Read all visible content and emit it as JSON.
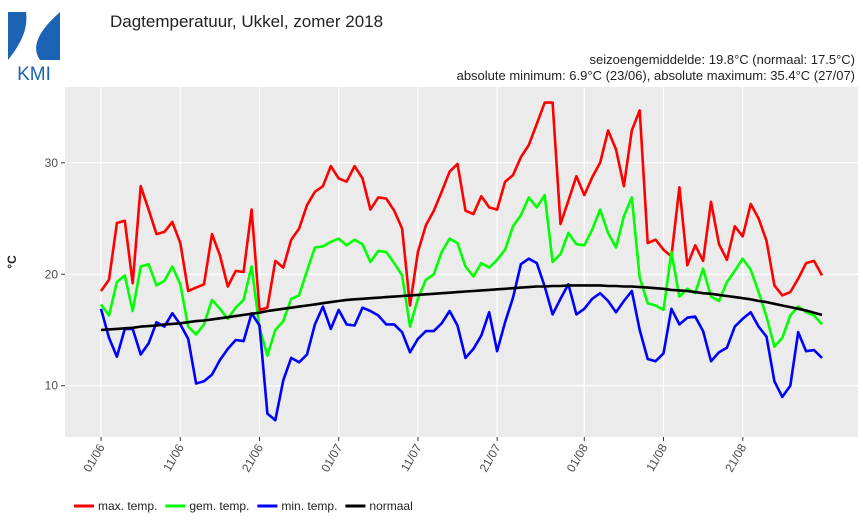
{
  "chart_data": {
    "type": "line",
    "logo": "KMI",
    "title": "Dagtemperatuur, Ukkel, zomer 2018",
    "subtitle": [
      "seizoengemiddelde: 19.8°C (normaal: 17.5°C)",
      "absolute minimum: 6.9°C (23/06), absolute maximum: 35.4°C (27/07)"
    ],
    "y_label": "°C",
    "ylim": [
      5.4,
      36.8
    ],
    "yticks": [
      10,
      20,
      30
    ],
    "grid": true,
    "legend": "bottom-left",
    "categories": [
      "01/06",
      null,
      null,
      null,
      null,
      null,
      null,
      null,
      null,
      null,
      "11/06",
      null,
      null,
      null,
      null,
      null,
      null,
      null,
      null,
      null,
      "21/06",
      null,
      null,
      null,
      null,
      null,
      null,
      null,
      null,
      null,
      "01/07",
      null,
      null,
      null,
      null,
      null,
      null,
      null,
      null,
      null,
      "11/07",
      null,
      null,
      null,
      null,
      null,
      null,
      null,
      null,
      null,
      "21/07",
      null,
      null,
      null,
      null,
      null,
      null,
      null,
      null,
      null,
      null,
      "01/08",
      null,
      null,
      null,
      null,
      null,
      null,
      null,
      null,
      null,
      "11/08",
      null,
      null,
      null,
      null,
      null,
      null,
      null,
      null,
      null,
      "21/08",
      null,
      null,
      null,
      null,
      null,
      null,
      null,
      null,
      null,
      null
    ],
    "series": [
      {
        "name": "max. temp.",
        "color": "#ff0000",
        "values": [
          18.5,
          19.5,
          24.6,
          24.8,
          19.2,
          27.9,
          25.8,
          23.6,
          23.8,
          24.7,
          22.8,
          18.5,
          18.8,
          19.1,
          23.6,
          21.7,
          18.9,
          20.3,
          20.2,
          25.8,
          16.8,
          17.0,
          21.2,
          20.6,
          23.1,
          24.1,
          26.2,
          27.4,
          27.9,
          29.7,
          28.6,
          28.3,
          29.7,
          28.6,
          25.8,
          26.9,
          26.8,
          25.7,
          24.1,
          17.2,
          22.0,
          24.4,
          25.7,
          27.4,
          29.2,
          29.9,
          25.7,
          25.4,
          27.0,
          26.0,
          25.8,
          28.3,
          28.9,
          30.5,
          31.6,
          33.5,
          35.4,
          35.4,
          24.5,
          26.6,
          28.8,
          27.1,
          28.7,
          30.0,
          32.9,
          31.2,
          27.9,
          32.9,
          34.7,
          22.8,
          23.1,
          22.2,
          21.6,
          27.8,
          20.8,
          22.6,
          21.2,
          26.5,
          22.7,
          21.3,
          24.3,
          23.4,
          26.3,
          25.0,
          23.0,
          19.0,
          18.1,
          18.4,
          19.6,
          21.0,
          21.2,
          19.9
        ]
      },
      {
        "name": "gem. temp.",
        "color": "#00ff00",
        "values": [
          17.3,
          16.3,
          19.3,
          19.9,
          16.7,
          20.7,
          20.9,
          19.0,
          19.4,
          20.7,
          19.1,
          15.3,
          14.6,
          15.5,
          17.7,
          16.9,
          16.0,
          17.0,
          17.7,
          20.7,
          15.2,
          12.7,
          15.0,
          15.8,
          17.8,
          18.1,
          20.3,
          22.4,
          22.5,
          22.9,
          23.2,
          22.6,
          23.1,
          22.7,
          21.1,
          22.1,
          22.0,
          21.0,
          19.9,
          15.3,
          17.8,
          19.5,
          20.0,
          22.0,
          23.2,
          22.8,
          20.7,
          19.8,
          21.0,
          20.6,
          21.3,
          22.2,
          24.3,
          25.3,
          26.9,
          26.0,
          27.1,
          21.1,
          21.8,
          23.7,
          22.7,
          22.6,
          24.0,
          25.8,
          23.7,
          22.4,
          25.2,
          26.9,
          19.7,
          17.4,
          17.2,
          16.8,
          22.0,
          18.0,
          18.7,
          18.3,
          20.5,
          18.0,
          17.6,
          19.3,
          20.3,
          21.4,
          20.4,
          18.4,
          16.2,
          13.5,
          14.3,
          16.3,
          17.1,
          16.6,
          16.3,
          15.5
        ]
      },
      {
        "name": "min. temp.",
        "color": "#0000ff",
        "values": [
          16.9,
          14.3,
          12.6,
          15.1,
          15.1,
          12.8,
          13.8,
          15.7,
          15.3,
          16.5,
          15.5,
          14.2,
          10.2,
          10.4,
          11.0,
          12.3,
          13.3,
          14.1,
          14.0,
          16.5,
          15.4,
          7.5,
          6.9,
          10.5,
          12.5,
          12.1,
          12.8,
          15.5,
          17.1,
          15.1,
          16.8,
          15.5,
          15.4,
          17.0,
          16.7,
          16.3,
          15.5,
          15.5,
          14.8,
          13.0,
          14.2,
          14.9,
          14.9,
          15.6,
          16.7,
          15.4,
          12.5,
          13.3,
          14.5,
          16.6,
          13.1,
          15.7,
          17.9,
          20.9,
          21.4,
          21.0,
          18.9,
          16.4,
          17.8,
          19.1,
          16.4,
          16.9,
          17.8,
          18.3,
          17.6,
          16.6,
          17.6,
          18.5,
          15.0,
          12.4,
          12.2,
          12.9,
          16.9,
          15.5,
          16.1,
          16.2,
          14.9,
          12.2,
          13.0,
          13.4,
          15.3,
          16.0,
          16.6,
          15.3,
          14.4,
          10.4,
          9.0,
          10.0,
          14.8,
          13.1,
          13.2,
          12.5
        ]
      },
      {
        "name": "normaal",
        "color": "#000000",
        "values": [
          15.0,
          15.05,
          15.1,
          15.15,
          15.2,
          15.3,
          15.35,
          15.4,
          15.5,
          15.55,
          15.6,
          15.7,
          15.8,
          15.85,
          15.95,
          16.05,
          16.15,
          16.25,
          16.35,
          16.45,
          16.55,
          16.7,
          16.8,
          16.9,
          17.0,
          17.1,
          17.2,
          17.3,
          17.4,
          17.5,
          17.6,
          17.7,
          17.75,
          17.8,
          17.85,
          17.9,
          17.95,
          18.0,
          18.05,
          18.1,
          18.15,
          18.2,
          18.25,
          18.3,
          18.35,
          18.4,
          18.45,
          18.5,
          18.55,
          18.6,
          18.65,
          18.7,
          18.75,
          18.8,
          18.85,
          18.9,
          18.9,
          18.95,
          18.95,
          19.0,
          19.0,
          19.0,
          19.0,
          19.0,
          18.95,
          18.95,
          18.9,
          18.9,
          18.85,
          18.8,
          18.75,
          18.7,
          18.6,
          18.55,
          18.5,
          18.4,
          18.3,
          18.25,
          18.15,
          18.05,
          17.95,
          17.85,
          17.75,
          17.6,
          17.5,
          17.35,
          17.2,
          17.05,
          16.9,
          16.75,
          16.55,
          16.35
        ]
      }
    ]
  }
}
